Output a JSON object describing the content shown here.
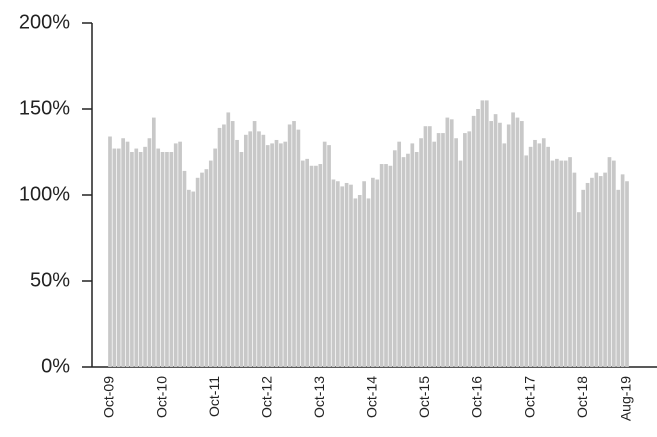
{
  "chart_data": {
    "type": "bar",
    "categories": [
      "Oct-09",
      null,
      null,
      null,
      null,
      null,
      null,
      null,
      null,
      null,
      null,
      null,
      "Oct-10",
      null,
      null,
      null,
      null,
      null,
      null,
      null,
      null,
      null,
      null,
      null,
      "Oct-11",
      null,
      null,
      null,
      null,
      null,
      null,
      null,
      null,
      null,
      null,
      null,
      "Oct-12",
      null,
      null,
      null,
      null,
      null,
      null,
      null,
      null,
      null,
      null,
      null,
      "Oct-13",
      null,
      null,
      null,
      null,
      null,
      null,
      null,
      null,
      null,
      null,
      null,
      "Oct-14",
      null,
      null,
      null,
      null,
      null,
      null,
      null,
      null,
      null,
      null,
      null,
      "Oct-15",
      null,
      null,
      null,
      null,
      null,
      null,
      null,
      null,
      null,
      null,
      null,
      "Oct-16",
      null,
      null,
      null,
      null,
      null,
      null,
      null,
      null,
      null,
      null,
      null,
      "Oct-17",
      null,
      null,
      null,
      null,
      null,
      null,
      null,
      null,
      null,
      null,
      null,
      "Oct-18",
      null,
      null,
      null,
      null,
      null,
      null,
      null,
      null,
      null,
      "Aug-19"
    ],
    "values": [
      134,
      127,
      127,
      133,
      131,
      125,
      127,
      125,
      128,
      133,
      145,
      127,
      125,
      125,
      125,
      130,
      131,
      114,
      103,
      102,
      110,
      113,
      115,
      120,
      127,
      139,
      141,
      148,
      143,
      132,
      125,
      135,
      137,
      143,
      137,
      135,
      129,
      130,
      132,
      130,
      131,
      141,
      143,
      138,
      120,
      121,
      117,
      117,
      118,
      131,
      129,
      109,
      108,
      105,
      107,
      106,
      98,
      100,
      108,
      98,
      110,
      109,
      118,
      118,
      117,
      126,
      131,
      122,
      124,
      130,
      125,
      133,
      140,
      140,
      131,
      136,
      136,
      145,
      144,
      133,
      120,
      136,
      137,
      146,
      150,
      155,
      155,
      143,
      147,
      142,
      130,
      141,
      148,
      145,
      143,
      123,
      128,
      132,
      130,
      133,
      128,
      120,
      121,
      120,
      120,
      122,
      113,
      90,
      103,
      107,
      110,
      113,
      111,
      113,
      122,
      120,
      103,
      112,
      108
    ],
    "color": "#c8c8c8",
    "ylim": [
      0,
      200
    ],
    "yticks": [
      {
        "value": 0,
        "label": "0%"
      },
      {
        "value": 50,
        "label": "50%"
      },
      {
        "value": 100,
        "label": "100%"
      },
      {
        "value": 150,
        "label": "150%"
      },
      {
        "value": 200,
        "label": "200%"
      }
    ],
    "grid": false
  }
}
